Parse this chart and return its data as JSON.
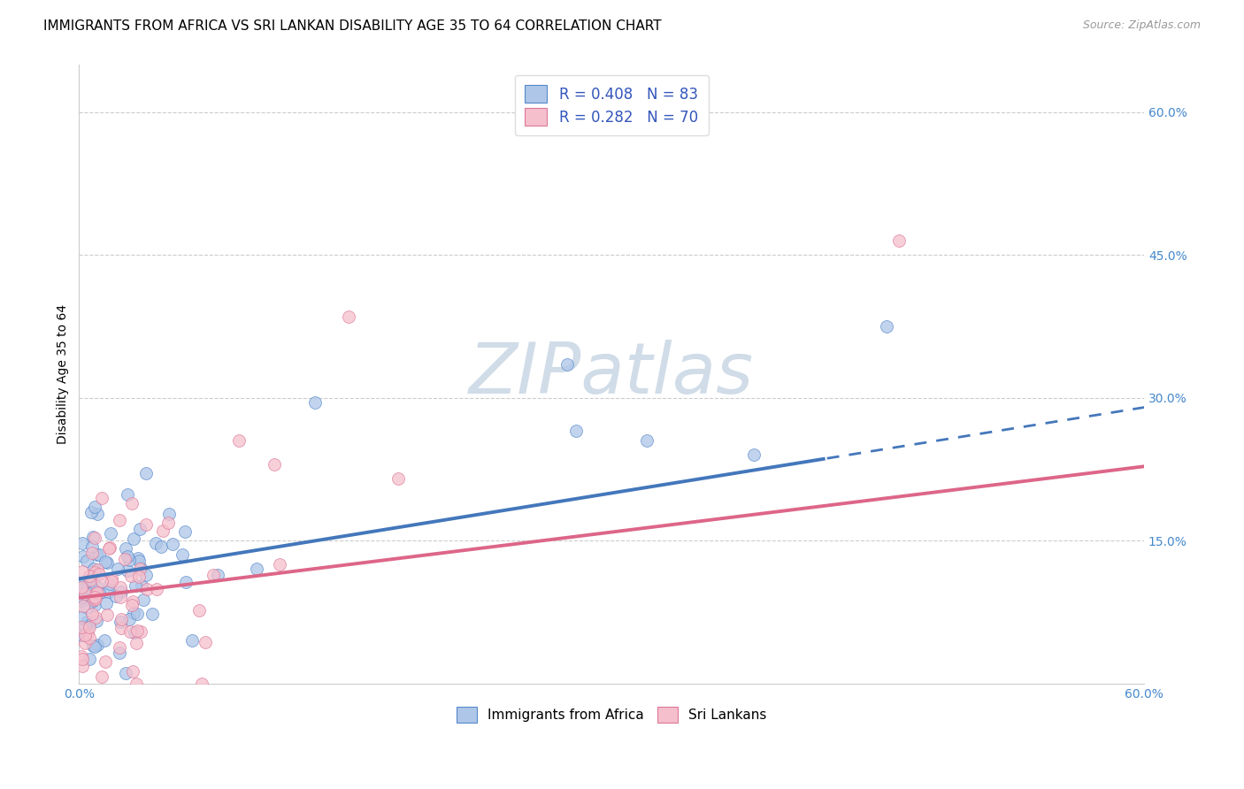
{
  "title": "IMMIGRANTS FROM AFRICA VS SRI LANKAN DISABILITY AGE 35 TO 64 CORRELATION CHART",
  "source": "Source: ZipAtlas.com",
  "ylabel": "Disability Age 35 to 64",
  "xlim": [
    0.0,
    0.6
  ],
  "ylim": [
    0.0,
    0.65
  ],
  "ytick_positions": [
    0.15,
    0.3,
    0.45,
    0.6
  ],
  "xtick_vals": [
    0.0,
    0.1,
    0.2,
    0.3,
    0.4,
    0.5,
    0.6
  ],
  "grid_color": "#cccccc",
  "background_color": "#ffffff",
  "series1": {
    "label": "Immigrants from Africa",
    "R": 0.408,
    "N": 83,
    "face_color": "#aec6e8",
    "edge_color": "#5588cc",
    "line_color": "#4477bb",
    "line_intercept": 0.11,
    "line_slope": 0.3,
    "line_solid_end": 0.42,
    "line_end": 0.6
  },
  "series2": {
    "label": "Sri Lankans",
    "R": 0.282,
    "N": 70,
    "face_color": "#f5bfcc",
    "edge_color": "#dd7799",
    "line_color": "#dd6688",
    "line_intercept": 0.09,
    "line_slope": 0.23,
    "line_solid_end": 0.6,
    "line_end": 0.6
  },
  "watermark_text": "ZIPatlas",
  "watermark_color": "#d0dce8",
  "title_fontsize": 11,
  "axis_label_fontsize": 10,
  "tick_fontsize": 10,
  "legend_fontsize": 12,
  "marker_size": 100
}
